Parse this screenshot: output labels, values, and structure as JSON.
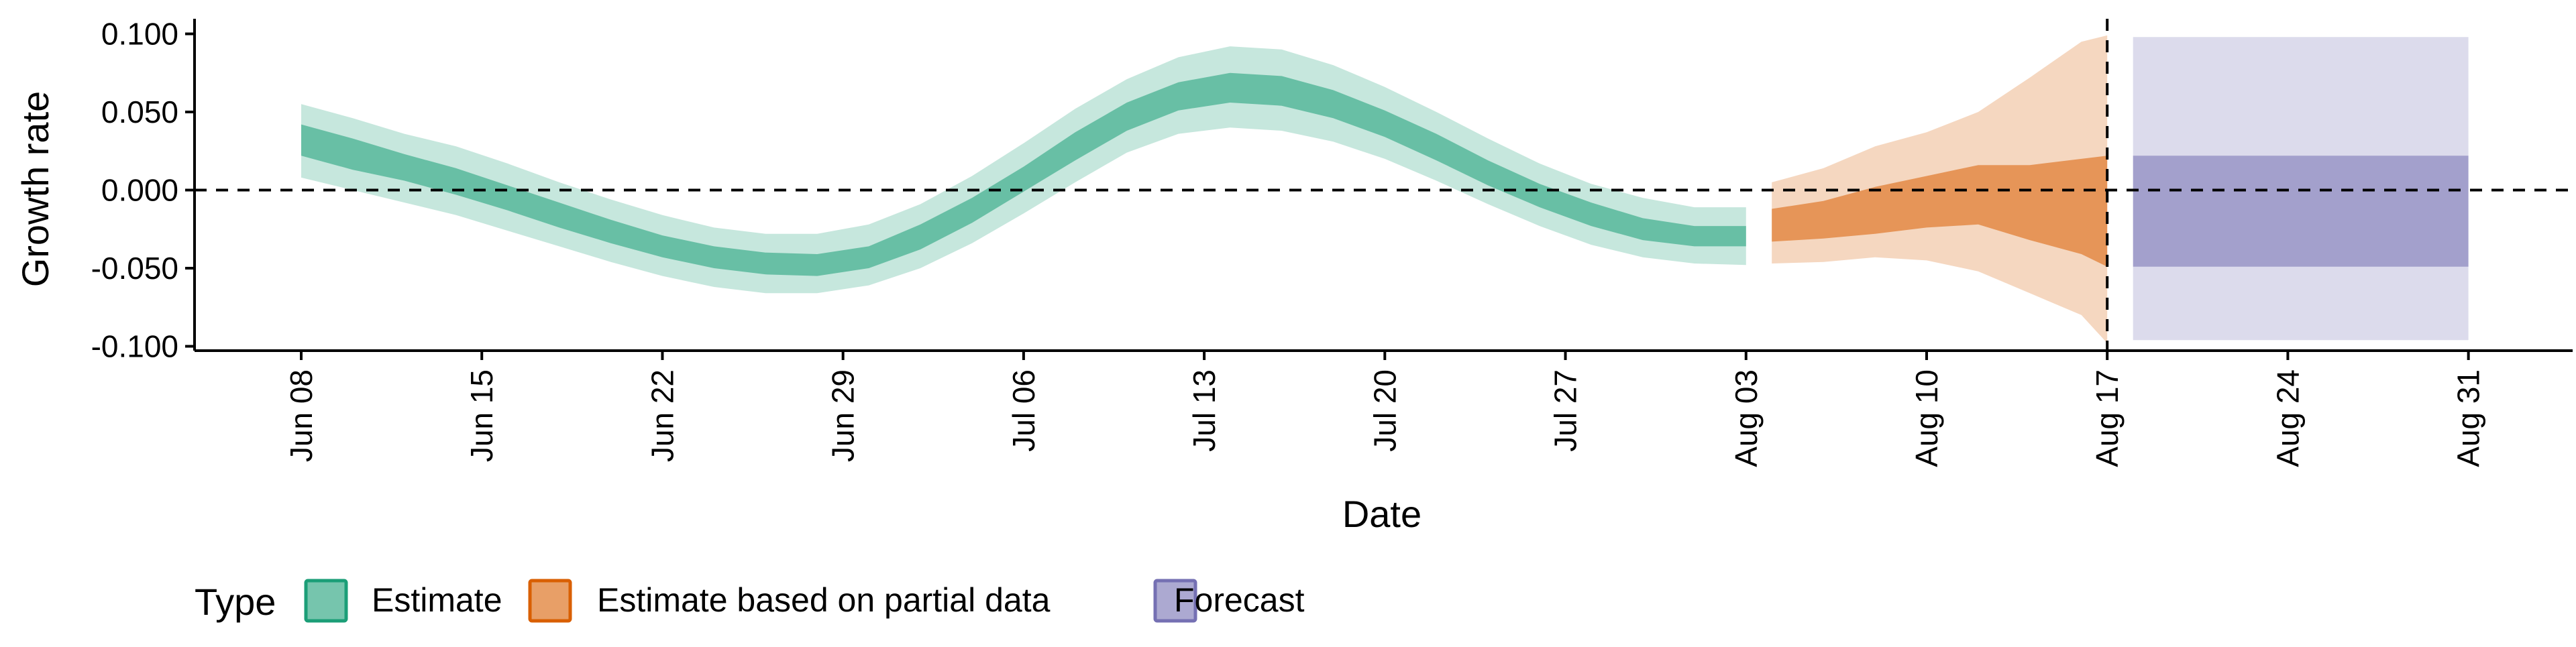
{
  "chart_data": {
    "type": "area",
    "title": "",
    "xlabel": "Date",
    "ylabel": "Growth rate",
    "ylim": [
      -0.1,
      0.1
    ],
    "xlim": [
      "2020-06-08",
      "2020-08-31"
    ],
    "y_ticks": [
      0.1,
      0.05,
      0.0,
      -0.05,
      -0.1
    ],
    "y_tick_labels": [
      "0.100",
      "0.050",
      "0.000",
      "-0.050",
      "-0.100"
    ],
    "x_ticks": [
      "2020-06-08",
      "2020-06-15",
      "2020-06-22",
      "2020-06-29",
      "2020-07-06",
      "2020-07-13",
      "2020-07-20",
      "2020-07-27",
      "2020-08-03",
      "2020-08-10",
      "2020-08-17",
      "2020-08-24",
      "2020-08-31"
    ],
    "x_tick_labels": [
      "Jun 08",
      "Jun 15",
      "Jun 22",
      "Jun 29",
      "Jul 06",
      "Jul 13",
      "Jul 20",
      "Jul 27",
      "Aug 03",
      "Aug 10",
      "Aug 17",
      "Aug 24",
      "Aug 31"
    ],
    "reference_lines": {
      "horizontal_y": 0.0,
      "vertical_x": "2020-08-17"
    },
    "grid": false,
    "legend": {
      "title": "Type",
      "placement": "bottom-left",
      "entries": [
        {
          "label": "Estimate",
          "color": "#1b9e77"
        },
        {
          "label": "Estimate based on partial data",
          "color": "#d95f02"
        },
        {
          "label": "Forecast",
          "color": "#7570b3"
        }
      ]
    },
    "series": [
      {
        "name": "Estimate",
        "color": "#1b9e77",
        "points": [
          {
            "x": "2020-06-08",
            "lo90": 0.008,
            "lo50": 0.022,
            "hi50": 0.042,
            "hi90": 0.055
          },
          {
            "x": "2020-06-10",
            "lo90": 0.0,
            "lo50": 0.013,
            "hi50": 0.033,
            "hi90": 0.046
          },
          {
            "x": "2020-06-12",
            "lo90": -0.008,
            "lo50": 0.006,
            "hi50": 0.023,
            "hi90": 0.036
          },
          {
            "x": "2020-06-14",
            "lo90": -0.016,
            "lo50": -0.003,
            "hi50": 0.014,
            "hi90": 0.028
          },
          {
            "x": "2020-06-16",
            "lo90": -0.026,
            "lo50": -0.013,
            "hi50": 0.003,
            "hi90": 0.017
          },
          {
            "x": "2020-06-18",
            "lo90": -0.036,
            "lo50": -0.024,
            "hi50": -0.008,
            "hi90": 0.005
          },
          {
            "x": "2020-06-20",
            "lo90": -0.046,
            "lo50": -0.034,
            "hi50": -0.019,
            "hi90": -0.006
          },
          {
            "x": "2020-06-22",
            "lo90": -0.055,
            "lo50": -0.043,
            "hi50": -0.029,
            "hi90": -0.016
          },
          {
            "x": "2020-06-24",
            "lo90": -0.062,
            "lo50": -0.05,
            "hi50": -0.036,
            "hi90": -0.024
          },
          {
            "x": "2020-06-26",
            "lo90": -0.066,
            "lo50": -0.054,
            "hi50": -0.04,
            "hi90": -0.028
          },
          {
            "x": "2020-06-28",
            "lo90": -0.066,
            "lo50": -0.055,
            "hi50": -0.041,
            "hi90": -0.028
          },
          {
            "x": "2020-06-30",
            "lo90": -0.061,
            "lo50": -0.05,
            "hi50": -0.036,
            "hi90": -0.022
          },
          {
            "x": "2020-07-02",
            "lo90": -0.05,
            "lo50": -0.038,
            "hi50": -0.022,
            "hi90": -0.009
          },
          {
            "x": "2020-07-04",
            "lo90": -0.034,
            "lo50": -0.021,
            "hi50": -0.005,
            "hi90": 0.009
          },
          {
            "x": "2020-07-06",
            "lo90": -0.015,
            "lo50": -0.001,
            "hi50": 0.015,
            "hi90": 0.03
          },
          {
            "x": "2020-07-08",
            "lo90": 0.005,
            "lo50": 0.019,
            "hi50": 0.037,
            "hi90": 0.052
          },
          {
            "x": "2020-07-10",
            "lo90": 0.024,
            "lo50": 0.038,
            "hi50": 0.056,
            "hi90": 0.071
          },
          {
            "x": "2020-07-12",
            "lo90": 0.036,
            "lo50": 0.051,
            "hi50": 0.069,
            "hi90": 0.085
          },
          {
            "x": "2020-07-14",
            "lo90": 0.04,
            "lo50": 0.056,
            "hi50": 0.075,
            "hi90": 0.092
          },
          {
            "x": "2020-07-16",
            "lo90": 0.038,
            "lo50": 0.054,
            "hi50": 0.073,
            "hi90": 0.09
          },
          {
            "x": "2020-07-18",
            "lo90": 0.031,
            "lo50": 0.046,
            "hi50": 0.064,
            "hi90": 0.08
          },
          {
            "x": "2020-07-20",
            "lo90": 0.02,
            "lo50": 0.034,
            "hi50": 0.051,
            "hi90": 0.066
          },
          {
            "x": "2020-07-22",
            "lo90": 0.006,
            "lo50": 0.019,
            "hi50": 0.036,
            "hi90": 0.05
          },
          {
            "x": "2020-07-24",
            "lo90": -0.009,
            "lo50": 0.003,
            "hi50": 0.019,
            "hi90": 0.033
          },
          {
            "x": "2020-07-26",
            "lo90": -0.023,
            "lo50": -0.011,
            "hi50": 0.004,
            "hi90": 0.017
          },
          {
            "x": "2020-07-28",
            "lo90": -0.035,
            "lo50": -0.023,
            "hi50": -0.008,
            "hi90": 0.004
          },
          {
            "x": "2020-07-30",
            "lo90": -0.043,
            "lo50": -0.032,
            "hi50": -0.018,
            "hi90": -0.005
          },
          {
            "x": "2020-08-01",
            "lo90": -0.047,
            "lo50": -0.036,
            "hi50": -0.023,
            "hi90": -0.011
          },
          {
            "x": "2020-08-03",
            "lo90": -0.048,
            "lo50": -0.036,
            "hi50": -0.023,
            "hi90": -0.011
          }
        ]
      },
      {
        "name": "Estimate based on partial data",
        "color": "#d95f02",
        "points": [
          {
            "x": "2020-08-04",
            "lo90": -0.047,
            "lo50": -0.033,
            "hi50": -0.012,
            "hi90": 0.005
          },
          {
            "x": "2020-08-06",
            "lo90": -0.046,
            "lo50": -0.031,
            "hi50": -0.007,
            "hi90": 0.014
          },
          {
            "x": "2020-08-08",
            "lo90": -0.043,
            "lo50": -0.028,
            "hi50": 0.002,
            "hi90": 0.028
          },
          {
            "x": "2020-08-10",
            "lo90": -0.045,
            "lo50": -0.024,
            "hi50": 0.009,
            "hi90": 0.037
          },
          {
            "x": "2020-08-12",
            "lo90": -0.052,
            "lo50": -0.022,
            "hi50": 0.016,
            "hi90": 0.05
          },
          {
            "x": "2020-08-14",
            "lo90": -0.066,
            "lo50": -0.032,
            "hi50": 0.016,
            "hi90": 0.072
          },
          {
            "x": "2020-08-16",
            "lo90": -0.08,
            "lo50": -0.041,
            "hi50": 0.02,
            "hi90": 0.095
          },
          {
            "x": "2020-08-17",
            "lo90": -0.098,
            "lo50": -0.049,
            "hi50": 0.022,
            "hi90": 0.099
          }
        ]
      },
      {
        "name": "Forecast",
        "color": "#7570b3",
        "points": [
          {
            "x": "2020-08-18",
            "lo90": -0.096,
            "lo50": -0.049,
            "hi50": 0.022,
            "hi90": 0.098
          },
          {
            "x": "2020-08-31",
            "lo90": -0.096,
            "lo50": -0.049,
            "hi50": 0.022,
            "hi90": 0.098
          }
        ]
      }
    ]
  }
}
